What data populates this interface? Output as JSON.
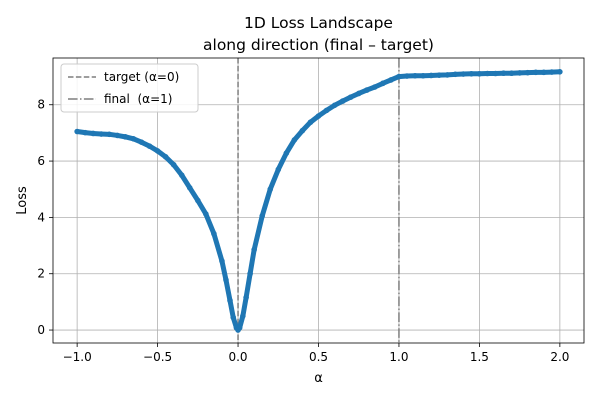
{
  "chart_data": {
    "type": "line",
    "title_lines": [
      "1D Loss Landscape",
      "along direction (final – target)"
    ],
    "xlabel": "α",
    "ylabel": "Loss",
    "xlim": [
      -1.15,
      2.15
    ],
    "ylim": [
      -0.46,
      9.66
    ],
    "x_ticks": [
      -1.0,
      -0.5,
      0.0,
      0.5,
      1.0,
      1.5,
      2.0
    ],
    "x_tick_labels": [
      "−1.0",
      "−0.5",
      "0.0",
      "0.5",
      "1.0",
      "1.5",
      "2.0"
    ],
    "y_ticks": [
      0,
      2,
      4,
      6,
      8
    ],
    "y_tick_labels": [
      "0",
      "2",
      "4",
      "6",
      "8"
    ],
    "grid": true,
    "legend_position": "top-left",
    "series": [
      {
        "color": "#1f77b4",
        "marker": "dot",
        "points": [
          [
            -1.0,
            7.05
          ],
          [
            -0.95,
            7.01
          ],
          [
            -0.9,
            6.98
          ],
          [
            -0.85,
            6.96
          ],
          [
            -0.8,
            6.95
          ],
          [
            -0.75,
            6.91
          ],
          [
            -0.7,
            6.86
          ],
          [
            -0.65,
            6.79
          ],
          [
            -0.6,
            6.67
          ],
          [
            -0.55,
            6.53
          ],
          [
            -0.5,
            6.36
          ],
          [
            -0.45,
            6.15
          ],
          [
            -0.4,
            5.87
          ],
          [
            -0.35,
            5.5
          ],
          [
            -0.3,
            5.05
          ],
          [
            -0.25,
            4.6
          ],
          [
            -0.2,
            4.12
          ],
          [
            -0.15,
            3.42
          ],
          [
            -0.1,
            2.45
          ],
          [
            -0.075,
            1.78
          ],
          [
            -0.05,
            1.05
          ],
          [
            -0.03,
            0.45
          ],
          [
            -0.01,
            0.08
          ],
          [
            0.0,
            0.0
          ],
          [
            0.01,
            0.08
          ],
          [
            0.03,
            0.5
          ],
          [
            0.05,
            1.15
          ],
          [
            0.075,
            2.0
          ],
          [
            0.1,
            2.85
          ],
          [
            0.15,
            4.05
          ],
          [
            0.2,
            5.0
          ],
          [
            0.25,
            5.7
          ],
          [
            0.3,
            6.28
          ],
          [
            0.35,
            6.75
          ],
          [
            0.4,
            7.08
          ],
          [
            0.45,
            7.38
          ],
          [
            0.5,
            7.6
          ],
          [
            0.55,
            7.8
          ],
          [
            0.6,
            7.98
          ],
          [
            0.65,
            8.13
          ],
          [
            0.7,
            8.27
          ],
          [
            0.75,
            8.4
          ],
          [
            0.8,
            8.52
          ],
          [
            0.85,
            8.63
          ],
          [
            0.9,
            8.76
          ],
          [
            0.95,
            8.88
          ],
          [
            1.0,
            9.0
          ],
          [
            1.05,
            9.02
          ],
          [
            1.1,
            9.03
          ],
          [
            1.15,
            9.03
          ],
          [
            1.2,
            9.04
          ],
          [
            1.25,
            9.05
          ],
          [
            1.3,
            9.06
          ],
          [
            1.35,
            9.08
          ],
          [
            1.4,
            9.09
          ],
          [
            1.45,
            9.1
          ],
          [
            1.5,
            9.1
          ],
          [
            1.55,
            9.11
          ],
          [
            1.6,
            9.11
          ],
          [
            1.65,
            9.12
          ],
          [
            1.7,
            9.12
          ],
          [
            1.75,
            9.13
          ],
          [
            1.8,
            9.14
          ],
          [
            1.85,
            9.15
          ],
          [
            1.9,
            9.15
          ],
          [
            1.95,
            9.16
          ],
          [
            2.0,
            9.17
          ]
        ]
      }
    ],
    "vlines": [
      {
        "x": 0,
        "label": "target (α=0)",
        "style": "dashed",
        "color": "#7f7f7f"
      },
      {
        "x": 1,
        "label": "final  (α=1)",
        "style": "dashdot",
        "color": "#7f7f7f"
      }
    ],
    "colors": {
      "grid": "#b0b0b0",
      "legend_border": "#cccccc"
    }
  }
}
